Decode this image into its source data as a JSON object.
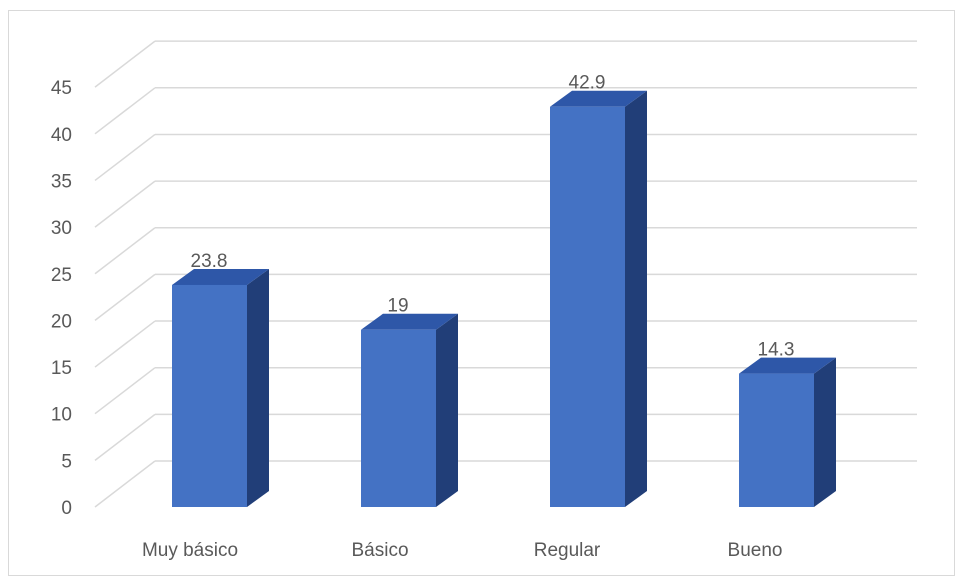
{
  "chart_data": {
    "type": "bar",
    "style": "3d-column",
    "title": "",
    "xlabel": "",
    "ylabel": "",
    "categories": [
      "Muy básico",
      "Básico",
      "Regular",
      "Bueno"
    ],
    "series": [
      {
        "values": [
          23.8,
          19,
          42.9,
          14.3
        ],
        "color": "#4472C4"
      }
    ],
    "data_labels": [
      "23.8",
      "19",
      "42.9",
      "14.3"
    ],
    "ylim": [
      0,
      45
    ],
    "y_ticks": [
      "0",
      "5",
      "10",
      "15",
      "20",
      "25",
      "30",
      "35",
      "40",
      "45"
    ],
    "grid": true,
    "legend": "none",
    "colors": {
      "bar_front": "#4472C4",
      "bar_side": "#213E78",
      "bar_top": "#2E57A8",
      "gridline": "#d9d9d9",
      "text": "#595959"
    }
  }
}
